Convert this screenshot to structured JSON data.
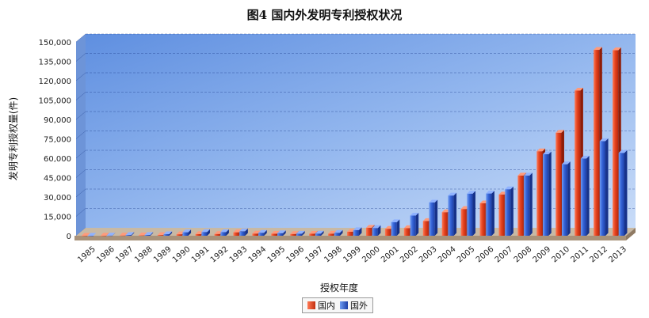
{
  "title": "图4  国内外发明专利授权状况",
  "chart_data": {
    "type": "bar",
    "title": "图4  国内外发明专利授权状况",
    "xlabel": "授权年度",
    "ylabel": "发明专利授权量(件)",
    "ylim": [
      0,
      150000
    ],
    "y_ticks": [
      "0",
      "15,000",
      "30,000",
      "45,000",
      "60,000",
      "75,000",
      "90,000",
      "105,000",
      "120,000",
      "135,000",
      "150,000"
    ],
    "categories": [
      "1985",
      "1986",
      "1987",
      "1988",
      "1989",
      "1990",
      "1991",
      "1992",
      "1993",
      "1994",
      "1995",
      "1996",
      "1997",
      "1998",
      "1999",
      "2000",
      "2001",
      "2002",
      "2003",
      "2004",
      "2005",
      "2006",
      "2007",
      "2008",
      "2009",
      "2010",
      "2011",
      "2012",
      "2013"
    ],
    "series": [
      {
        "name": "国内",
        "color": "#e0401e",
        "values": [
          38,
          52,
          174,
          245,
          556,
          1149,
          1311,
          1386,
          2644,
          1659,
          1530,
          1383,
          1532,
          1574,
          3097,
          6177,
          5395,
          5868,
          11404,
          18241,
          20705,
          25077,
          31945,
          46590,
          65391,
          79767,
          112347,
          143847,
          143535
        ]
      },
      {
        "name": "国外",
        "color": "#2f5fd0",
        "values": [
          0,
          120,
          580,
          640,
          1200,
          2700,
          2900,
          2800,
          3500,
          2300,
          2000,
          1600,
          1700,
          2300,
          4400,
          6000,
          10500,
          15600,
          25750,
          31119,
          32600,
          32709,
          36003,
          46573,
          63098,
          55343,
          59766,
          73258,
          64153
        ]
      }
    ],
    "grid": true,
    "legend_position": "bottom-center"
  }
}
